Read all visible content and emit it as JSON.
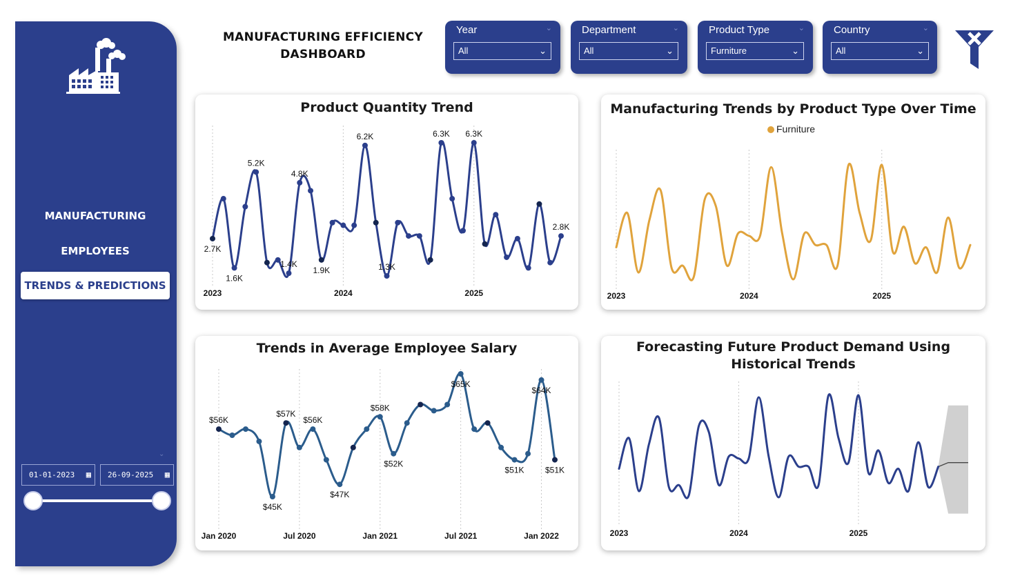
{
  "header": {
    "title": "MANUFACTURING  EFFICIENCY DASHBOARD"
  },
  "sidebar": {
    "logo_icon": "factory-icon",
    "nav": [
      {
        "label": "MANUFACTURING",
        "active": false
      },
      {
        "label": "EMPLOYEES",
        "active": false
      },
      {
        "label": "TRENDS & PREDICTIONS",
        "active": true
      }
    ],
    "date_range": {
      "start": "01-01-2023",
      "end": "26-09-2025"
    },
    "calendar_icon": "calendar-icon"
  },
  "slicers": [
    {
      "label": "Year",
      "value": "All"
    },
    {
      "label": "Department",
      "value": "All"
    },
    {
      "label": "Product Type",
      "value": "Furniture"
    },
    {
      "label": "Country",
      "value": "All"
    }
  ],
  "clear_filter_icon": "clear-filter-icon",
  "colors": {
    "brand": "#2B3F8C",
    "line_blue": "#2B3F8C",
    "line_salary": "#2B5C8C",
    "furniture": "#E0A33C",
    "forecast_band": "#D0D0D0"
  },
  "chart_data": [
    {
      "id": "product-quantity-trend",
      "type": "line",
      "title": "Product Quantity Trend",
      "x_ticks": [
        "2023",
        "2024",
        "2025"
      ],
      "series": [
        {
          "values": [
            2700,
            4200,
            1600,
            3900,
            5200,
            1800,
            1900,
            1400,
            4800,
            4500,
            1900,
            3300,
            3200,
            3200,
            6200,
            3300,
            1300,
            3300,
            2800,
            2800,
            1900,
            6300,
            4200,
            3000,
            6300,
            2500,
            3600,
            2000,
            2700,
            1600,
            4000,
            1800,
            2800
          ]
        }
      ],
      "data_labels": [
        {
          "index": 0,
          "text": "2.7K",
          "pos": "below"
        },
        {
          "index": 2,
          "text": "1.6K",
          "pos": "below"
        },
        {
          "index": 4,
          "text": "5.2K",
          "pos": "above"
        },
        {
          "index": 7,
          "text": "1.4K",
          "pos": "above"
        },
        {
          "index": 8,
          "text": "4.8K",
          "pos": "above"
        },
        {
          "index": 10,
          "text": "1.9K",
          "pos": "below"
        },
        {
          "index": 14,
          "text": "6.2K",
          "pos": "above"
        },
        {
          "index": 16,
          "text": "1.3K",
          "pos": "above"
        },
        {
          "index": 21,
          "text": "6.3K",
          "pos": "above"
        },
        {
          "index": 24,
          "text": "6.3K",
          "pos": "above"
        },
        {
          "index": 32,
          "text": "2.8K",
          "pos": "above"
        }
      ]
    },
    {
      "id": "manufacturing-trends-by-product-type",
      "type": "line",
      "title": "Manufacturing Trends by Product Type Over Time",
      "legend": [
        "Furniture"
      ],
      "x_ticks": [
        "2023",
        "2024",
        "2025"
      ],
      "series": [
        {
          "name": "Furniture",
          "values": [
            2700,
            4200,
            1600,
            3900,
            5200,
            1800,
            1900,
            1400,
            4800,
            4500,
            1900,
            3300,
            3200,
            3200,
            6200,
            3300,
            1300,
            3300,
            2800,
            2800,
            1900,
            6300,
            4200,
            3000,
            6300,
            2500,
            3600,
            2000,
            2700,
            1600,
            4000,
            1800,
            2800
          ]
        }
      ]
    },
    {
      "id": "average-employee-salary",
      "type": "line",
      "title": "Trends in Average Employee Salary",
      "x_ticks": [
        "Jan 2020",
        "Jul 2020",
        "Jan 2021",
        "Jul 2021",
        "Jan 2022"
      ],
      "series": [
        {
          "values": [
            56000,
            55000,
            56000,
            54000,
            45000,
            57000,
            53000,
            56000,
            51000,
            47000,
            53000,
            56000,
            58000,
            52000,
            57000,
            60000,
            59000,
            60000,
            65000,
            56000,
            57000,
            53000,
            51000,
            52000,
            64000,
            51000
          ]
        }
      ],
      "data_labels": [
        {
          "index": 0,
          "text": "$56K",
          "pos": "above"
        },
        {
          "index": 4,
          "text": "$45K",
          "pos": "below"
        },
        {
          "index": 5,
          "text": "$57K",
          "pos": "above"
        },
        {
          "index": 7,
          "text": "$56K",
          "pos": "above"
        },
        {
          "index": 9,
          "text": "$47K",
          "pos": "below"
        },
        {
          "index": 12,
          "text": "$58K",
          "pos": "above"
        },
        {
          "index": 13,
          "text": "$52K",
          "pos": "below"
        },
        {
          "index": 18,
          "text": "$65K",
          "pos": "below"
        },
        {
          "index": 22,
          "text": "$51K",
          "pos": "below"
        },
        {
          "index": 24,
          "text": "$64K",
          "pos": "below"
        },
        {
          "index": 25,
          "text": "$51K",
          "pos": "below"
        }
      ]
    },
    {
      "id": "forecast-product-demand",
      "type": "line",
      "title": "Forecasting Future Product Demand Using Historical Trends",
      "x_ticks": [
        "2023",
        "2024",
        "2025"
      ],
      "series": [
        {
          "values": [
            2700,
            4200,
            1600,
            3900,
            5200,
            1800,
            1900,
            1400,
            4800,
            4500,
            1900,
            3300,
            3200,
            3200,
            6200,
            3300,
            1300,
            3300,
            2800,
            2800,
            1900,
            6300,
            4200,
            3000,
            6300,
            2500,
            3600,
            2000,
            2700,
            1600,
            4000,
            1800,
            2800
          ]
        }
      ],
      "forecast": {
        "values": [
          3000,
          3000,
          3000
        ],
        "upper": [
          5800,
          5800,
          5800
        ],
        "lower": [
          500,
          500,
          500
        ]
      }
    }
  ]
}
